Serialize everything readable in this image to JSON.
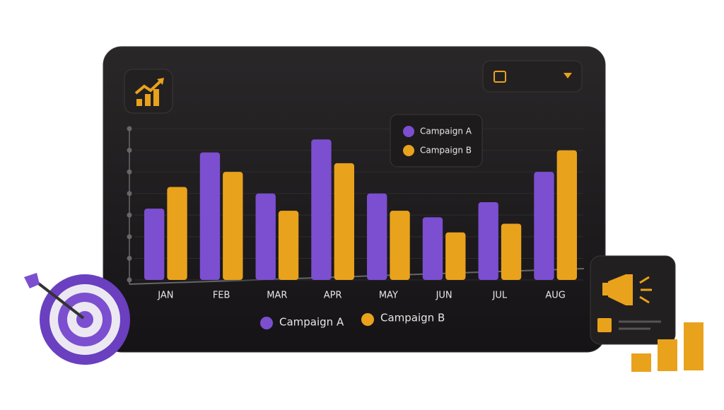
{
  "chart_data": {
    "type": "bar",
    "categories": [
      "JAN",
      "FEB",
      "MAR",
      "APR",
      "MAY",
      "JUN",
      "JUL",
      "AUG"
    ],
    "series": [
      {
        "name": "Campaign A",
        "color": "#7b4fd0",
        "values": [
          3.3,
          5.9,
          4.0,
          6.5,
          4.0,
          2.9,
          3.6,
          5.0
        ]
      },
      {
        "name": "Campaign B",
        "color": "#e9a21c",
        "values": [
          4.3,
          5.0,
          3.2,
          5.4,
          3.2,
          2.2,
          2.6,
          6.0
        ]
      }
    ],
    "ylim": [
      0,
      7
    ],
    "yticks": [
      0,
      1,
      2,
      3,
      4,
      5,
      6,
      7
    ],
    "grid": true
  }
}
